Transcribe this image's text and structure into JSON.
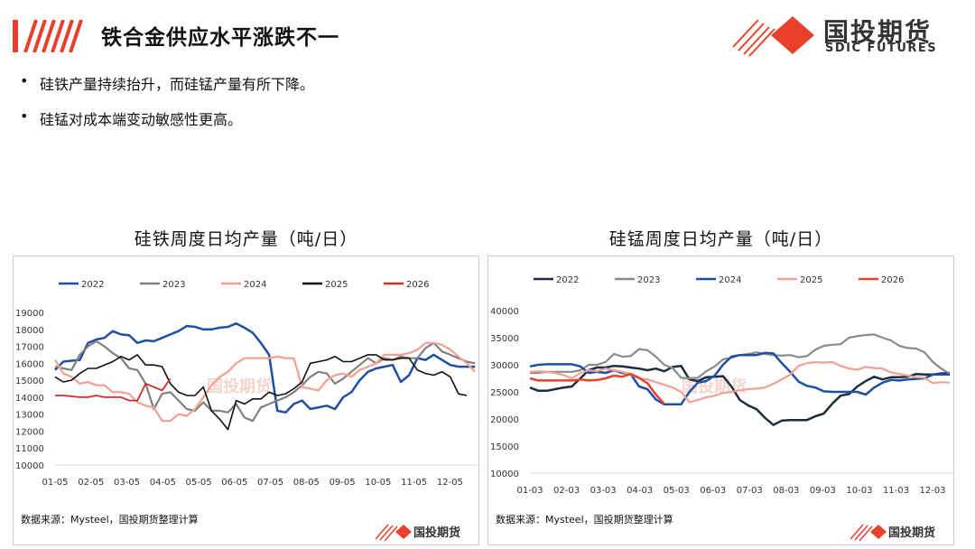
{
  "header": {
    "title": "铁合金供应水平涨跌不一",
    "brand_cn": "国投期货",
    "brand_en": "SDIC FUTURES"
  },
  "bullets": [
    "硅铁产量持续抬升，而硅锰产量有所下降。",
    "硅锰对成本端变动敏感性更高。"
  ],
  "colors": {
    "accent": "#e8402a"
  },
  "chart_data": [
    {
      "type": "line",
      "title": "硅铁周度日均产量（吨/日）",
      "xlabel": "",
      "ylabel": "",
      "x_unit": "week index from 01-05",
      "xticks": [
        "01-05",
        "02-05",
        "03-05",
        "04-05",
        "05-05",
        "06-05",
        "07-05",
        "08-05",
        "09-05",
        "10-05",
        "11-05",
        "12-05"
      ],
      "yticks": [
        "19000",
        "18000",
        "17000",
        "16000",
        "15000",
        "14000",
        "13000",
        "12000",
        "11000",
        "10000"
      ],
      "ylim": [
        10000,
        19000
      ],
      "legend": "top",
      "source": "数据来源：Mysteel，国投期货整理计算",
      "series": [
        {
          "name": "2022",
          "color": "#1f4fa3",
          "width": 2.5,
          "values": [
            15600,
            16100,
            16150,
            16200,
            17200,
            17400,
            17500,
            17900,
            17700,
            17650,
            17200,
            17350,
            17300,
            17500,
            17700,
            17900,
            18200,
            18150,
            18000,
            18000,
            18100,
            18150,
            18350,
            18100,
            17800,
            17200,
            16500,
            13200,
            13100,
            13600,
            13800,
            13300,
            13400,
            13500,
            13300,
            14000,
            14300,
            15000,
            15500,
            15700,
            15800,
            15900,
            14900,
            15300,
            16300,
            16200,
            16500,
            16200,
            15900,
            15800,
            15800,
            15800
          ]
        },
        {
          "name": "2023",
          "color": "#808080",
          "width": 2.2,
          "values": [
            15800,
            15700,
            15600,
            16500,
            17000,
            17300,
            17000,
            16600,
            16300,
            15700,
            15600,
            14800,
            13300,
            14200,
            14300,
            13800,
            13300,
            13200,
            13700,
            13200,
            13200,
            13100,
            13600,
            12800,
            12600,
            13400,
            13600,
            13800,
            14000,
            14300,
            14700,
            15200,
            15500,
            15400,
            14800,
            15100,
            15500,
            15900,
            16300,
            16000,
            16300,
            16200,
            16400,
            16300,
            16300,
            16900,
            17200,
            16700,
            16500,
            16300,
            16100,
            16000
          ]
        },
        {
          "name": "2024",
          "color": "#f4a090",
          "width": 2.2,
          "values": [
            16200,
            15400,
            15200,
            14800,
            14900,
            14700,
            14700,
            14300,
            14300,
            14200,
            13700,
            13500,
            13400,
            12600,
            12600,
            13000,
            12900,
            13300,
            14000,
            14700,
            15200,
            15500,
            16000,
            16300,
            16300,
            16300,
            16300,
            16400,
            16300,
            16300,
            14600,
            14500,
            14400,
            15000,
            15300,
            15400,
            15200,
            15600,
            15800,
            16000,
            16500,
            16500,
            16500,
            16600,
            16800,
            17200,
            17200,
            17100,
            16800,
            16400,
            16000,
            15500
          ]
        },
        {
          "name": "2025",
          "color": "#111111",
          "width": 1.6,
          "values": [
            15200,
            14900,
            15000,
            15400,
            15700,
            15700,
            15900,
            16100,
            16400,
            16200,
            16500,
            15900,
            15900,
            15800,
            14800,
            14300,
            14100,
            14100,
            14600,
            13200,
            12700,
            12100,
            13800,
            13600,
            13900,
            13900,
            14300,
            14100,
            14200,
            14500,
            14900,
            16000,
            16100,
            16200,
            16400,
            16100,
            16100,
            16300,
            16500,
            16500,
            16200,
            16200,
            16300,
            16300,
            15600,
            15400,
            15300,
            15500,
            15200,
            14200,
            14100
          ]
        },
        {
          "name": "2026",
          "color": "#d42a2a",
          "width": 1.8,
          "values": [
            14100,
            14100,
            14050,
            14000,
            14000,
            14100,
            14000,
            14000,
            14000,
            13800,
            13800,
            14800,
            14600,
            14400,
            15100
          ]
        }
      ]
    },
    {
      "type": "line",
      "title": "硅锰周度日均产量（吨/日）",
      "xlabel": "",
      "ylabel": "",
      "x_unit": "week index from 01-03",
      "xticks": [
        "01-03",
        "02-03",
        "03-03",
        "04-03",
        "05-03",
        "06-03",
        "07-03",
        "08-03",
        "09-03",
        "10-03",
        "11-03",
        "12-03"
      ],
      "yticks": [
        "40000",
        "35000",
        "30000",
        "25000",
        "20000",
        "15000",
        "10000"
      ],
      "ylim": [
        10000,
        40000
      ],
      "legend": "top",
      "source": "数据来源：Mysteel，国投期货整理计算",
      "series": [
        {
          "name": "2022",
          "color": "#1b2e3c",
          "width": 2.5,
          "values": [
            25800,
            25200,
            25200,
            25500,
            25800,
            26000,
            27500,
            29000,
            29500,
            29500,
            29800,
            29700,
            29500,
            29300,
            29000,
            29300,
            28800,
            29600,
            29800,
            27300,
            27000,
            27700,
            27800,
            27900,
            26000,
            23500,
            22500,
            21800,
            20200,
            18900,
            19700,
            19800,
            19800,
            19800,
            20500,
            21000,
            22800,
            24300,
            24600,
            26000,
            27000,
            27800,
            27300,
            27700,
            27700,
            27800,
            28300,
            28200,
            28200,
            28400,
            28500
          ]
        },
        {
          "name": "2023",
          "color": "#8a8a8a",
          "width": 2.2,
          "values": [
            28500,
            28500,
            28700,
            28700,
            28700,
            28700,
            29000,
            30000,
            30000,
            30500,
            32000,
            31500,
            31600,
            32900,
            32700,
            31500,
            30000,
            29400,
            27600,
            27500,
            27600,
            28800,
            29700,
            31000,
            31300,
            31800,
            32000,
            32300,
            32000,
            31800,
            31700,
            31800,
            31400,
            31600,
            32800,
            33500,
            33700,
            33800,
            35000,
            35300,
            35500,
            35600,
            35000,
            34500,
            33500,
            33100,
            33000,
            32300,
            30500,
            29300,
            28300
          ]
        },
        {
          "name": "2024",
          "color": "#1f4fa3",
          "width": 2.5,
          "values": [
            29700,
            30000,
            30100,
            30100,
            30100,
            30100,
            29700,
            28500,
            28700,
            28500,
            29000,
            28500,
            28300,
            26000,
            25500,
            23600,
            22700,
            22700,
            22700,
            25000,
            26700,
            27000,
            28000,
            30000,
            31500,
            31800,
            31800,
            31800,
            32200,
            32100,
            30300,
            28700,
            26900,
            26100,
            25800,
            25100,
            25000,
            25000,
            25000,
            25000,
            24500,
            25800,
            26700,
            27200,
            27100,
            27300,
            27400,
            27500,
            28200,
            28200,
            28200
          ]
        },
        {
          "name": "2025",
          "color": "#f4a090",
          "width": 2.2,
          "values": [
            28700,
            28800,
            28700,
            28500,
            28100,
            27500,
            28500,
            29000,
            28800,
            29300,
            29000,
            28700,
            28200,
            27500,
            27300,
            26800,
            26300,
            25800,
            25000,
            23100,
            23500,
            24000,
            24300,
            24800,
            25000,
            25300,
            25500,
            25600,
            25800,
            26500,
            27300,
            28200,
            29800,
            30300,
            30500,
            30400,
            30500,
            29800,
            29300,
            29100,
            29600,
            29400,
            29300,
            28600,
            28300,
            28000,
            27700,
            27600,
            26600,
            26800,
            26700
          ]
        },
        {
          "name": "2026",
          "color": "#e8402a",
          "width": 2.5,
          "values": [
            27500,
            27100,
            27100,
            27100,
            27100,
            27100,
            27300,
            27100,
            27200,
            27500,
            28000,
            27800,
            28300,
            27600,
            26600,
            24500,
            22800
          ]
        }
      ]
    }
  ]
}
